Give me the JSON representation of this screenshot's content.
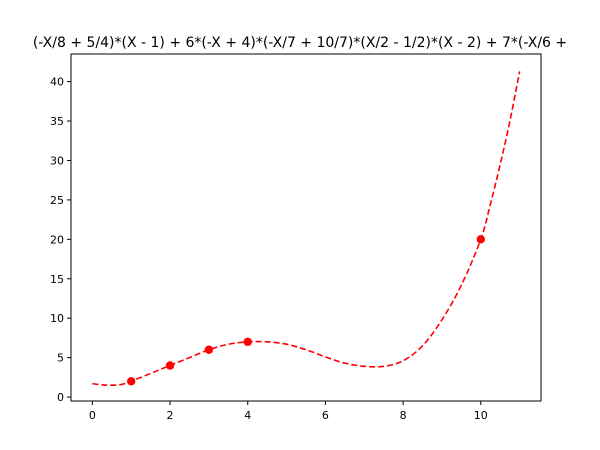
{
  "chart_data": {
    "type": "line",
    "title": "(-X/8 + 5/4)*(X - 1) + 6*(-X + 4)*(-X/7 + 10/7)*(X/2 - 1/2)*(X - 2) + 7*(-X/6 + ",
    "xlabel": "",
    "ylabel": "",
    "xlim": [
      -0.55,
      11.55
    ],
    "ylim": [
      -0.5,
      43.5
    ],
    "xticks": [
      0,
      2,
      4,
      6,
      8,
      10
    ],
    "yticks": [
      0,
      5,
      10,
      15,
      20,
      25,
      30,
      35,
      40
    ],
    "grid": false,
    "legend": "none",
    "series": [
      {
        "kind": "curve",
        "style": "dashed",
        "color": "#ff0000",
        "x": [
          0,
          0.25,
          0.5,
          0.75,
          1,
          1.5,
          2,
          2.5,
          3,
          3.5,
          4,
          4.5,
          5,
          5.5,
          6,
          6.5,
          7,
          7.5,
          8,
          8.5,
          9,
          9.5,
          10,
          10.25,
          10.5,
          10.75,
          11
        ],
        "y": [
          1.7,
          1.55,
          1.5,
          1.6,
          2.0,
          3.0,
          4.0,
          5.0,
          6.0,
          6.7,
          7.0,
          7.0,
          6.7,
          6.0,
          5.1,
          4.3,
          3.9,
          3.9,
          4.6,
          6.5,
          9.8,
          14.2,
          20.0,
          24.5,
          29.5,
          35.0,
          41.3
        ]
      },
      {
        "kind": "points",
        "color": "#ff0000",
        "x": [
          1,
          2,
          3,
          4,
          10
        ],
        "y": [
          2,
          4,
          6,
          7,
          20
        ]
      }
    ]
  }
}
